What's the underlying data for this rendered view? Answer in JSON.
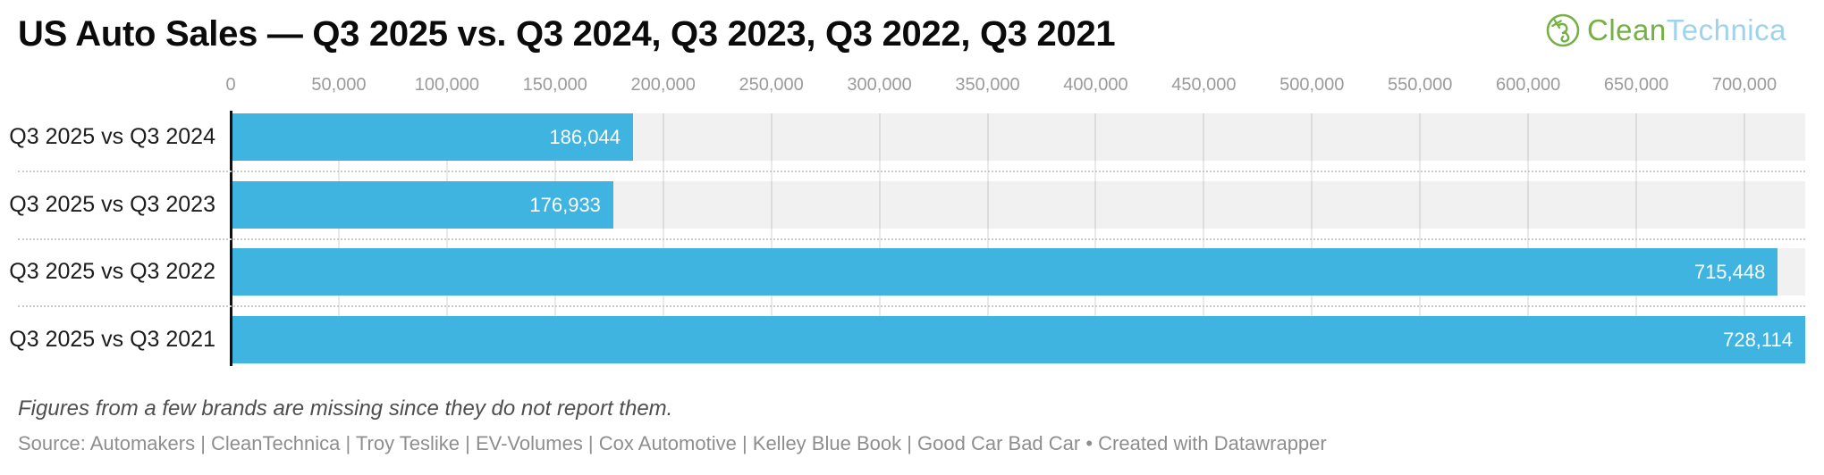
{
  "header": {
    "title": "US Auto Sales — Q3 2025 vs. Q3 2024, Q3 2023, Q3 2022, Q3 2021",
    "logo": {
      "part1": "Clean",
      "part2": "Technica",
      "icon": "cleantechnica-plug-icon",
      "green_color": "#74b042",
      "blue_color": "#9fd3ec"
    }
  },
  "chart_data": {
    "type": "bar",
    "orientation": "horizontal",
    "title": "US Auto Sales — Q3 2025 vs. Q3 2024, Q3 2023, Q3 2022, Q3 2021",
    "categories": [
      "Q3 2025 vs Q3 2024",
      "Q3 2025 vs Q3 2023",
      "Q3 2025 vs Q3 2022",
      "Q3 2025 vs Q3 2021"
    ],
    "values": [
      186044,
      176933,
      715448,
      728114
    ],
    "value_labels": [
      "186,044",
      "176,933",
      "715,448",
      "728,114"
    ],
    "bar_color": "#3fb4e1",
    "band_color": "#f1f1f1",
    "value_label_color": "#ffffff",
    "axis": {
      "min": 0,
      "max": 700000,
      "tick_step": 50000,
      "tick_labels": [
        "0",
        "50,000",
        "100,000",
        "150,000",
        "200,000",
        "250,000",
        "300,000",
        "350,000",
        "400,000",
        "450,000",
        "500,000",
        "550,000",
        "600,000",
        "650,000",
        "700,000"
      ],
      "position": "top",
      "grid": true
    },
    "legend": null
  },
  "footer": {
    "note": "Figures from a few brands are missing since they do not report them.",
    "source": "Source: Automakers | CleanTechnica | Troy Teslike | EV-Volumes | Cox Automotive | Kelley Blue Book | Good Car Bad Car • Created with Datawrapper"
  }
}
